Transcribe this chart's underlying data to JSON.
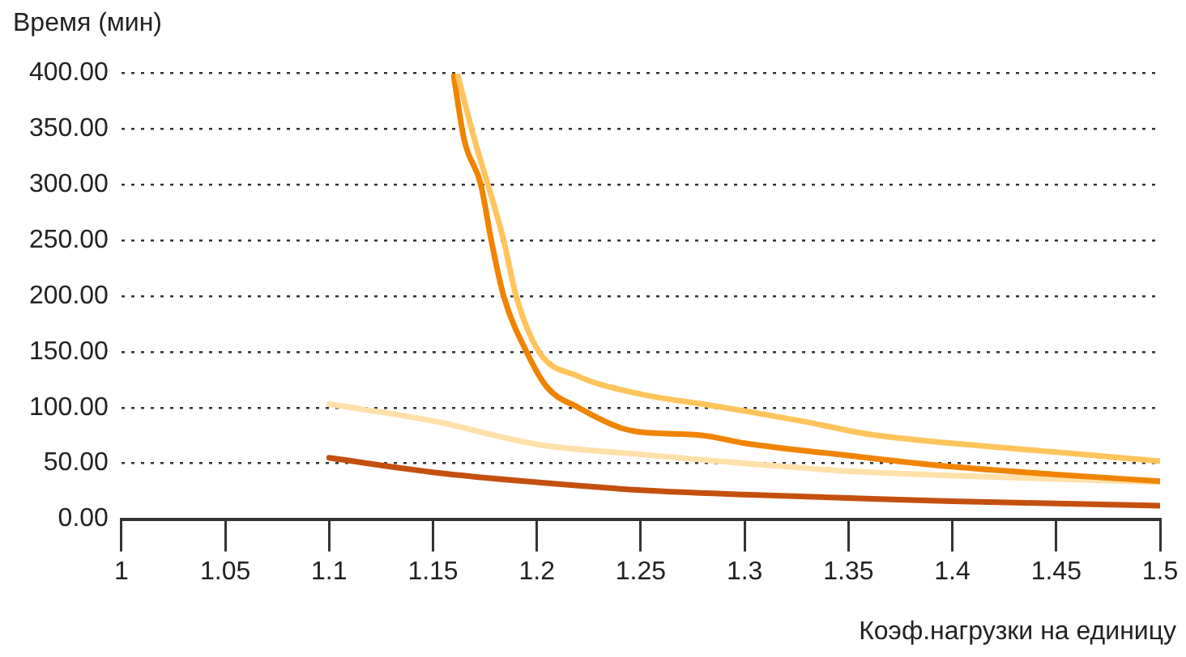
{
  "chart_data": {
    "type": "line",
    "xlabel": "Коэф.нагрузки на единицу",
    "ylabel": "Время (мин)",
    "xlim": [
      1,
      1.5
    ],
    "xticks": [
      1,
      1.05,
      1.1,
      1.15,
      1.2,
      1.25,
      1.3,
      1.35,
      1.4,
      1.45,
      1.5
    ],
    "ylim": [
      0,
      400
    ],
    "yticks": [
      {
        "value": 0,
        "label": "0.00"
      },
      {
        "value": 50,
        "label": "50.00"
      },
      {
        "value": 100,
        "label": "100.00"
      },
      {
        "value": 150,
        "label": "150.00"
      },
      {
        "value": 200,
        "label": "200.00"
      },
      {
        "value": 250,
        "label": "250.00"
      },
      {
        "value": 300,
        "label": "300.00"
      },
      {
        "value": 350,
        "label": "350.00"
      },
      {
        "value": 400,
        "label": "400.00"
      }
    ],
    "grid": "y",
    "legend": false,
    "marker": "none",
    "line_style": "solid",
    "series": [
      {
        "color": "#ffc45c",
        "x": [
          1.162,
          1.17,
          1.178,
          1.184,
          1.19,
          1.201,
          1.22,
          1.25,
          1.28,
          1.3,
          1.33,
          1.36,
          1.4,
          1.45,
          1.5
        ],
        "values": [
          397,
          340,
          290,
          250,
          200,
          150,
          128,
          112,
          103,
          97,
          87,
          76,
          68,
          60,
          52
        ]
      },
      {
        "color": "#f08400",
        "x": [
          1.16,
          1.165,
          1.173,
          1.178,
          1.184,
          1.195,
          1.205,
          1.22,
          1.24,
          1.25,
          1.28,
          1.3,
          1.35,
          1.4,
          1.45,
          1.5
        ],
        "values": [
          397,
          340,
          300,
          250,
          200,
          150,
          118,
          100,
          82,
          78,
          75,
          68,
          57,
          47,
          40,
          34
        ]
      },
      {
        "color": "#ffe0a8",
        "x": [
          1.1,
          1.15,
          1.2,
          1.25,
          1.3,
          1.35,
          1.4,
          1.45,
          1.5
        ],
        "values": [
          103,
          88,
          67,
          58,
          50,
          43,
          39,
          36,
          33
        ]
      },
      {
        "color": "#c4500f",
        "x": [
          1.1,
          1.15,
          1.2,
          1.25,
          1.3,
          1.35,
          1.4,
          1.45,
          1.5
        ],
        "values": [
          55,
          42,
          33,
          26,
          22,
          19,
          16,
          14,
          12
        ]
      }
    ]
  }
}
